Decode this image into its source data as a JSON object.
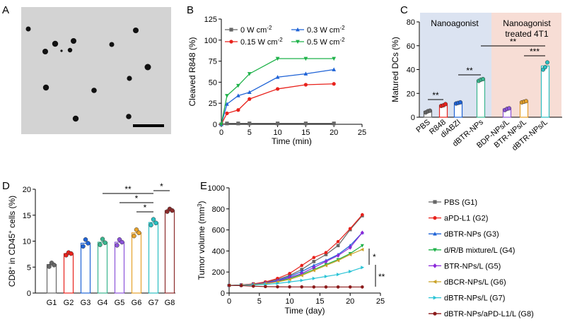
{
  "panels": {
    "A": {
      "letter": "A"
    },
    "B": {
      "letter": "B"
    },
    "C": {
      "letter": "C"
    },
    "D": {
      "letter": "D"
    },
    "E": {
      "letter": "E"
    }
  },
  "chart_data": [
    {
      "id": "B",
      "type": "line",
      "xlabel": "Time (min)",
      "ylabel": "Cleaved R848 (%)",
      "xlim": [
        0,
        25
      ],
      "ylim": [
        0,
        125
      ],
      "xticks": [
        "0",
        "5",
        "10",
        "15",
        "20",
        "25"
      ],
      "yticks": [
        "0",
        "25",
        "50",
        "75",
        "100",
        "125"
      ],
      "x": [
        0,
        1,
        3,
        5,
        10,
        15,
        20
      ],
      "series": [
        {
          "name": "0 W cm-2",
          "color": "#666666",
          "marker": "square",
          "values": [
            0,
            1,
            1,
            1,
            1,
            1,
            1
          ]
        },
        {
          "name": "0.15 W cm-2",
          "color": "#e8221c",
          "marker": "circle",
          "values": [
            0,
            13,
            17,
            30,
            42,
            47,
            48
          ]
        },
        {
          "name": "0.3 W cm-2",
          "color": "#1f63d6",
          "marker": "triangle-up",
          "values": [
            0,
            24,
            34,
            38,
            56,
            60,
            65
          ]
        },
        {
          "name": "0.5 W cm-2",
          "color": "#1fb24a",
          "marker": "triangle-down",
          "values": [
            0,
            34,
            46,
            60,
            78,
            78,
            78
          ]
        }
      ],
      "legend": {
        "items": [
          "0 W cm",
          "0.15 W cm",
          "0.3 W cm",
          "0.5 W cm"
        ],
        "superscript": "-2"
      }
    },
    {
      "id": "C",
      "type": "bar",
      "ylabel": "Matured DCs (%)",
      "ylim": [
        0,
        80
      ],
      "yticks": [
        "0",
        "20",
        "40",
        "60",
        "80"
      ],
      "categories": [
        "PBS",
        "R848",
        "diABZI",
        "dBTR-NPs",
        "BDP-NPs/L",
        "BTR-NPs/L",
        "dBTR-NPs/L"
      ],
      "values": [
        5,
        10,
        12,
        31,
        7,
        13,
        43
      ],
      "points": [
        [
          4,
          5,
          5.5
        ],
        [
          9.5,
          10,
          11
        ],
        [
          11.5,
          12,
          12.5
        ],
        [
          30.5,
          31.5,
          32
        ],
        [
          6,
          7,
          7.5
        ],
        [
          12.5,
          13,
          13.5
        ],
        [
          40,
          42,
          46
        ]
      ],
      "colors": [
        "#666666",
        "#e8221c",
        "#1f63d6",
        "#3ab58e",
        "#8b52d9",
        "#e6a12a",
        "#2bbfc2"
      ],
      "regions": [
        {
          "label": "Nanoagonist",
          "color": "#dbe3f1"
        },
        {
          "label_line1": "Nanoagonist",
          "label_line2": "treated 4T1",
          "color": "#f7ddd5"
        }
      ],
      "annotations": [
        "**",
        "**",
        "**",
        "***"
      ]
    },
    {
      "id": "D",
      "type": "bar",
      "ylabel_main": "CD8",
      "ylabel_sup1": "+",
      "ylabel_mid": " in CD45",
      "ylabel_sup2": "+",
      "ylabel_end": " cells (%)",
      "ylim": [
        0,
        20
      ],
      "yticks": [
        "0",
        "5",
        "10",
        "15",
        "20"
      ],
      "categories": [
        "G1",
        "G2",
        "G3",
        "G4",
        "G5",
        "G6",
        "G7",
        "G8"
      ],
      "values": [
        5.5,
        7.6,
        9.6,
        9.8,
        9.8,
        11.6,
        13.6,
        15.9
      ],
      "points": [
        [
          5.1,
          5.8,
          5.4
        ],
        [
          7.3,
          7.8,
          7.6
        ],
        [
          9.0,
          10.3,
          9.6
        ],
        [
          9.3,
          10.4,
          9.7
        ],
        [
          9.2,
          10.3,
          9.8
        ],
        [
          11.0,
          12.2,
          11.6
        ],
        [
          13.1,
          14.2,
          13.5
        ],
        [
          15.7,
          16.2,
          15.9
        ]
      ],
      "colors": [
        "#666666",
        "#e8221c",
        "#1f63d6",
        "#3ab58e",
        "#8b52d9",
        "#e6a12a",
        "#2bbfc2",
        "#8b2a2a"
      ],
      "annotations": [
        "**",
        "*",
        "*",
        "*"
      ]
    },
    {
      "id": "E",
      "type": "line",
      "xlabel": "Time (day)",
      "ylabel_main": "Tumor volume (mm",
      "ylabel_sup": "3",
      "ylabel_end": ")",
      "xlim": [
        0,
        25
      ],
      "ylim": [
        0,
        1000
      ],
      "xticks": [
        "0",
        "5",
        "10",
        "15",
        "20",
        "25"
      ],
      "yticks": [
        "0",
        "200",
        "400",
        "600",
        "800",
        "1000"
      ],
      "x": [
        0,
        2,
        4,
        6,
        8,
        10,
        12,
        14,
        16,
        18,
        20,
        22
      ],
      "series": [
        {
          "name": "PBS (G1)",
          "color": "#666666",
          "marker": "square",
          "values": [
            20,
            25,
            35,
            50,
            80,
            120,
            180,
            260,
            330,
            420,
            580,
            720
          ]
        },
        {
          "name": "aPD-L1 (G2)",
          "color": "#e8221c",
          "marker": "circle",
          "values": [
            20,
            25,
            35,
            55,
            90,
            140,
            220,
            300,
            350,
            460,
            590,
            730
          ]
        },
        {
          "name": "dBTR-NPs (G3)",
          "color": "#1f63d6",
          "marker": "triangle-up",
          "values": [
            20,
            22,
            30,
            45,
            70,
            110,
            160,
            220,
            270,
            330,
            420,
            550
          ]
        },
        {
          "name": "d/R/B mixture/L (G4)",
          "color": "#1fb24a",
          "marker": "triangle-down",
          "values": [
            20,
            22,
            28,
            40,
            60,
            90,
            130,
            180,
            230,
            280,
            340,
            420
          ]
        },
        {
          "name": "BTR-NPs/L (G5)",
          "color": "#8b2ad9",
          "marker": "diamond",
          "values": [
            20,
            22,
            28,
            42,
            65,
            100,
            140,
            200,
            260,
            320,
            400,
            550
          ]
        },
        {
          "name": "dBCR-NPs/L (G6)",
          "color": "#c9a227",
          "marker": "triangle-left",
          "values": [
            20,
            22,
            27,
            38,
            55,
            80,
            120,
            170,
            220,
            270,
            330,
            380
          ]
        },
        {
          "name": "dBTR-NPs/L (G7)",
          "color": "#2bc4d6",
          "marker": "triangle-right",
          "values": [
            20,
            21,
            24,
            30,
            40,
            55,
            70,
            90,
            110,
            130,
            160,
            200
          ]
        },
        {
          "name": "dBTR-NPs/aPD-L1/L (G8)",
          "color": "#8b1a1a",
          "marker": "hexagon",
          "values": [
            20,
            18,
            12,
            8,
            6,
            5,
            5,
            4,
            4,
            4,
            4,
            4
          ]
        }
      ],
      "annotations": [
        "*",
        "**"
      ]
    }
  ]
}
